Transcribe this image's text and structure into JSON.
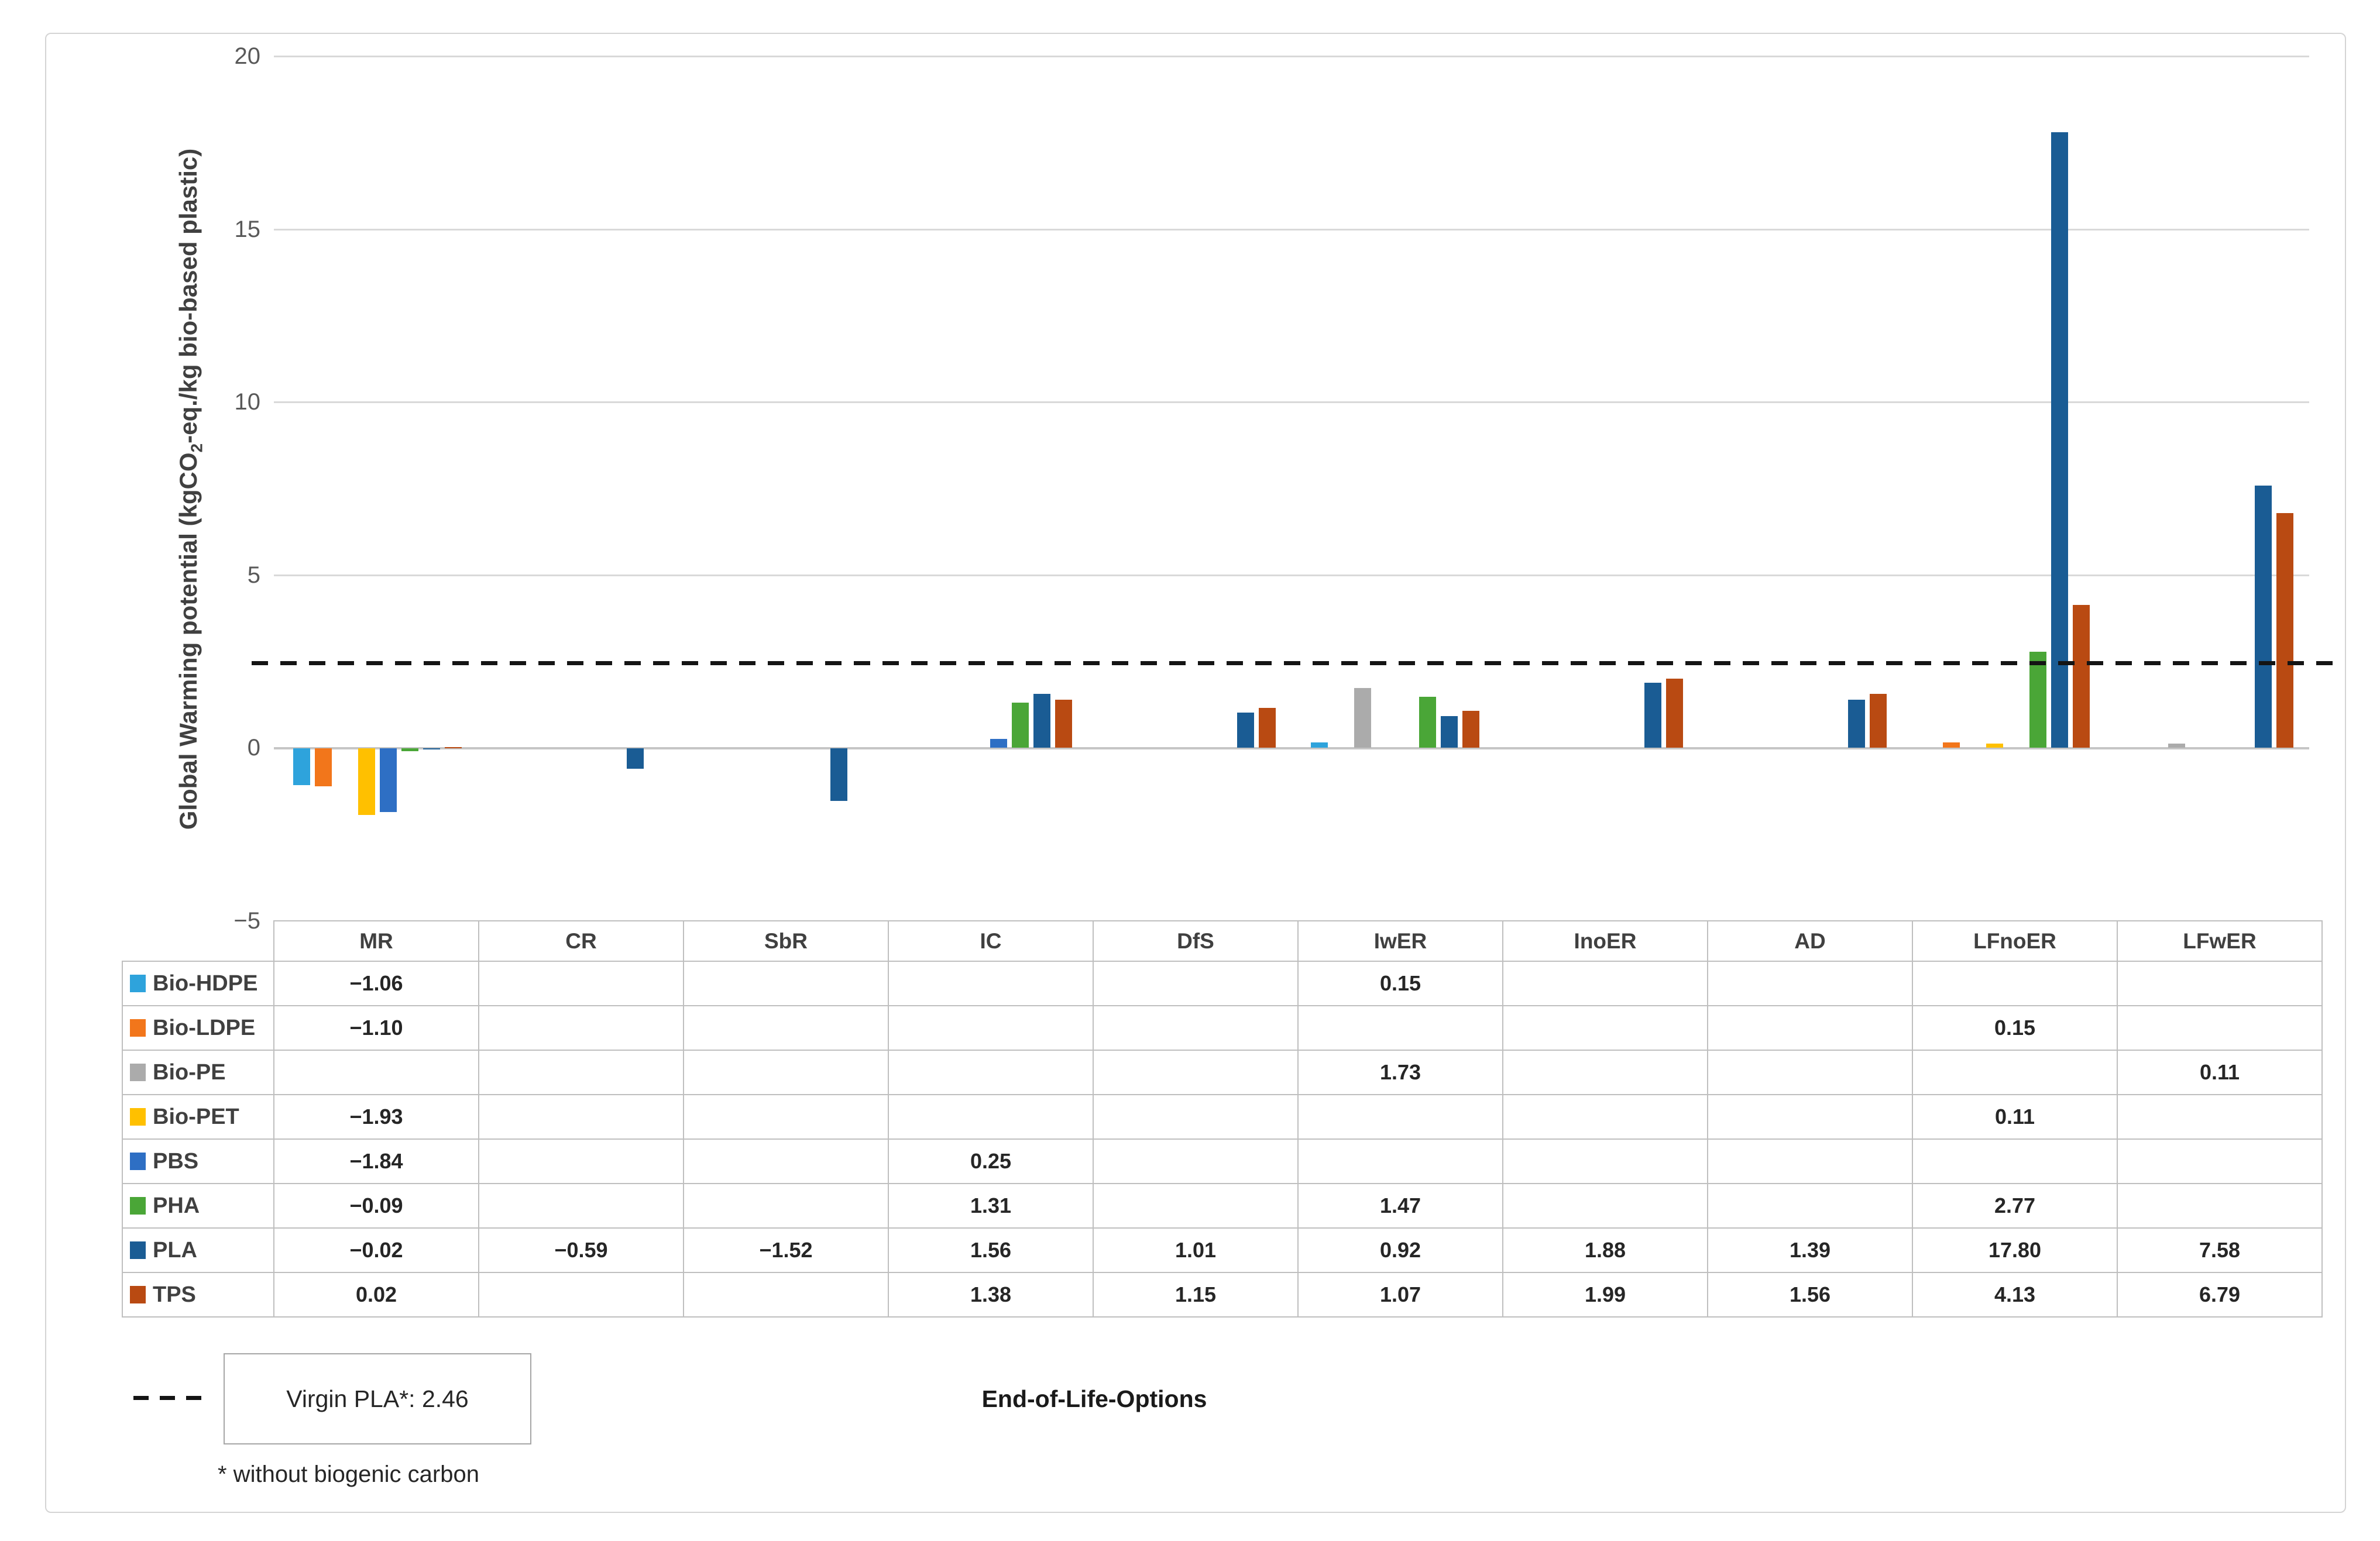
{
  "chart_data": {
    "type": "bar",
    "title": "",
    "ylabel_pre": "Global Warming potential (kgCO",
    "ylabel_sub": "2",
    "ylabel_post": "-eq./kg bio-based plastic)",
    "xlabel": "End-of-Life-Options",
    "ylim": [
      -5,
      20
    ],
    "yticks": [
      20,
      15,
      10,
      5,
      0,
      -5
    ],
    "grid": "horizontal",
    "legend_position": "table-left",
    "categories": [
      "MR",
      "CR",
      "SbR",
      "IC",
      "DfS",
      "IwER",
      "InoER",
      "AD",
      "LFnoER",
      "LFwER"
    ],
    "series": [
      {
        "name": "Bio-HDPE",
        "color": "#2EA3DC",
        "values": [
          -1.06,
          null,
          null,
          null,
          null,
          0.15,
          null,
          null,
          null,
          null
        ]
      },
      {
        "name": "Bio-LDPE",
        "color": "#F2761B",
        "values": [
          -1.1,
          null,
          null,
          null,
          null,
          null,
          null,
          null,
          0.15,
          null
        ]
      },
      {
        "name": "Bio-PE",
        "color": "#ABABAB",
        "values": [
          null,
          null,
          null,
          null,
          null,
          1.73,
          null,
          null,
          null,
          0.11
        ]
      },
      {
        "name": "Bio-PET",
        "color": "#FFC000",
        "values": [
          -1.93,
          null,
          null,
          null,
          null,
          null,
          null,
          null,
          0.11,
          null
        ]
      },
      {
        "name": "PBS",
        "color": "#2E6FC4",
        "values": [
          -1.84,
          null,
          null,
          0.25,
          null,
          null,
          null,
          null,
          null,
          null
        ]
      },
      {
        "name": "PHA",
        "color": "#4AA637",
        "values": [
          -0.09,
          null,
          null,
          1.31,
          null,
          1.47,
          null,
          null,
          2.77,
          null
        ]
      },
      {
        "name": "PLA",
        "color": "#1A5C94",
        "values": [
          -0.02,
          -0.59,
          -1.52,
          1.56,
          1.01,
          0.92,
          1.88,
          1.39,
          17.8,
          7.58
        ]
      },
      {
        "name": "TPS",
        "color": "#B94A12",
        "values": [
          0.02,
          null,
          null,
          1.38,
          1.15,
          1.07,
          1.99,
          1.56,
          4.13,
          6.79
        ]
      }
    ],
    "reference_line": {
      "value": 2.46,
      "style": "dashed",
      "color": "#141414",
      "label": "Virgin PLA*: 2.46"
    },
    "footnote": "* without biogenic carbon"
  }
}
